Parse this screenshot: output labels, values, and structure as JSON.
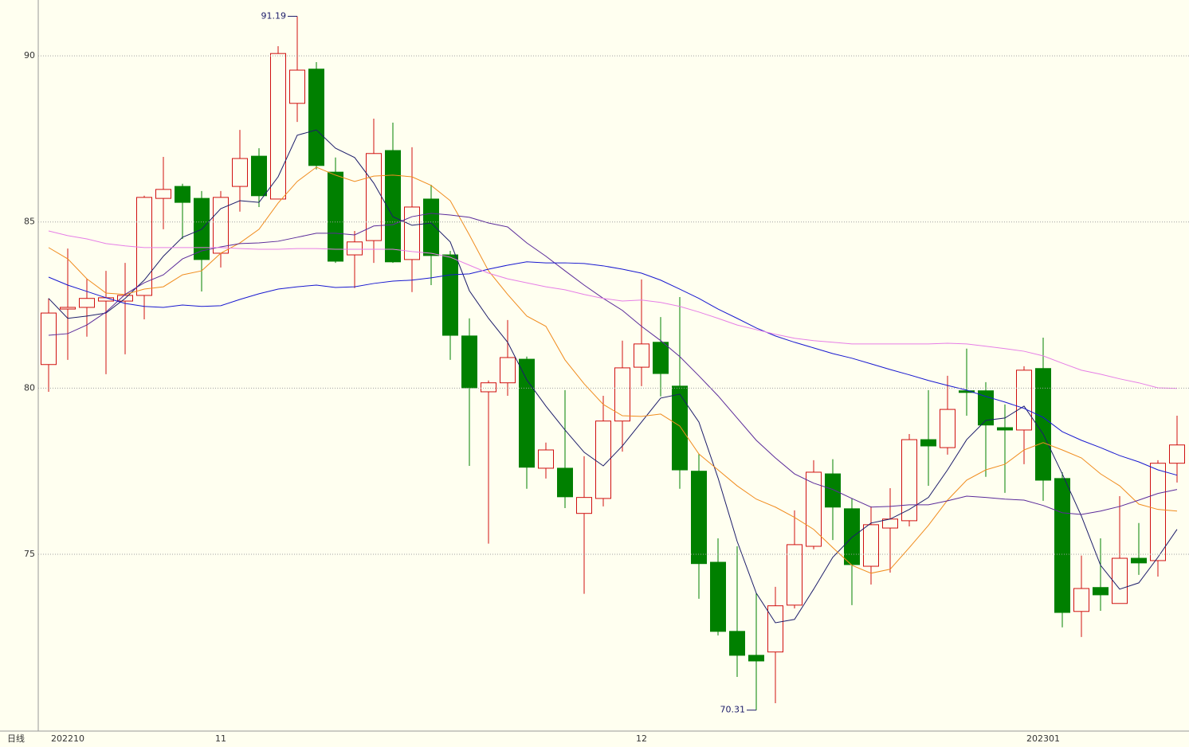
{
  "chart_data": {
    "type": "candlestick",
    "period_label": "日线",
    "categories": [
      null,
      "202210",
      null,
      null,
      null,
      null,
      null,
      null,
      null,
      "11",
      null,
      null,
      null,
      null,
      null,
      null,
      null,
      null,
      null,
      null,
      null,
      null,
      null,
      null,
      null,
      null,
      null,
      null,
      null,
      null,
      null,
      "12",
      null,
      null,
      null,
      null,
      null,
      null,
      null,
      null,
      null,
      null,
      null,
      null,
      null,
      null,
      null,
      null,
      null,
      null,
      null,
      null,
      "202301",
      null,
      null,
      null,
      null,
      null,
      null,
      null
    ],
    "open": [
      80.71,
      82.38,
      82.43,
      82.62,
      82.62,
      82.79,
      85.71,
      86.07,
      85.71,
      84.06,
      86.07,
      86.98,
      85.69,
      88.57,
      89.6,
      86.5,
      84.01,
      84.44,
      87.15,
      83.87,
      85.69,
      84.01,
      81.57,
      79.89,
      80.16,
      80.87,
      77.59,
      77.59,
      76.23,
      76.68,
      79.01,
      80.63,
      81.38,
      80.06,
      77.5,
      74.76,
      72.68,
      71.96,
      72.06,
      73.47,
      75.24,
      77.42,
      76.37,
      74.64,
      75.79,
      76.01,
      78.45,
      78.21,
      79.92,
      79.92,
      78.81,
      78.74,
      80.59,
      77.28,
      73.28,
      74.0,
      73.52,
      74.88,
      74.81,
      77.74
    ],
    "high": [
      82.7,
      84.2,
      83.29,
      83.53,
      83.77,
      85.79,
      86.96,
      86.15,
      85.93,
      85.93,
      87.77,
      87.22,
      90.29,
      91.19,
      89.81,
      86.94,
      84.73,
      88.11,
      87.99,
      87.25,
      86.12,
      84.13,
      82.1,
      80.23,
      82.05,
      80.95,
      78.36,
      79.94,
      77.95,
      79.77,
      81.43,
      83.27,
      82.14,
      82.74,
      78.02,
      75.48,
      75.24,
      73.83,
      74.02,
      76.32,
      77.83,
      77.86,
      76.68,
      76.44,
      76.99,
      78.62,
      79.94,
      80.37,
      81.19,
      80.18,
      79.51,
      80.66,
      81.52,
      77.47,
      74.96,
      75.48,
      76.75,
      75.94,
      77.83,
      79.17
    ],
    "low": [
      79.89,
      80.85,
      81.55,
      80.42,
      81.02,
      82.07,
      84.78,
      84.49,
      82.91,
      83.63,
      85.31,
      85.45,
      85.69,
      88.01,
      86.58,
      83.77,
      83.01,
      83.77,
      83.77,
      82.89,
      83.1,
      80.85,
      77.66,
      75.32,
      79.77,
      76.97,
      77.28,
      76.39,
      73.81,
      76.44,
      78.09,
      80.06,
      79.75,
      76.97,
      73.66,
      72.56,
      71.31,
      70.31,
      70.52,
      73.37,
      75.15,
      75.43,
      73.47,
      74.09,
      74.45,
      75.84,
      77.06,
      78.0,
      79.17,
      77.33,
      76.85,
      77.71,
      76.61,
      72.8,
      72.51,
      73.3,
      73.52,
      74.38,
      74.33,
      77.16
    ],
    "close": [
      82.26,
      82.43,
      82.7,
      82.72,
      82.79,
      85.74,
      85.98,
      85.59,
      83.87,
      85.74,
      86.91,
      85.79,
      90.07,
      89.57,
      86.7,
      83.82,
      84.4,
      87.06,
      83.8,
      85.45,
      83.99,
      81.59,
      80.01,
      80.16,
      80.92,
      77.62,
      78.14,
      76.73,
      76.71,
      79.01,
      80.61,
      81.33,
      80.44,
      77.54,
      74.72,
      72.68,
      71.96,
      71.79,
      73.45,
      75.29,
      77.47,
      76.42,
      74.69,
      75.89,
      76.06,
      78.45,
      78.26,
      79.36,
      79.87,
      78.89,
      78.74,
      80.54,
      77.23,
      73.25,
      73.97,
      73.78,
      74.88,
      74.74,
      77.74,
      78.29
    ],
    "up_color": "#d01010",
    "down_color": "#008000",
    "series": [
      {
        "color": "#1c1c6a",
        "values": [
          82.7,
          82.1,
          82.17,
          82.26,
          82.7,
          83.25,
          83.97,
          84.54,
          84.78,
          85.4,
          85.64,
          85.59,
          86.36,
          87.61,
          87.77,
          87.22,
          86.94,
          86.17,
          85.16,
          84.9,
          84.97,
          84.4,
          82.93,
          82.1,
          81.38,
          80.25,
          79.46,
          78.74,
          78.07,
          77.66,
          78.26,
          78.98,
          79.7,
          79.82,
          78.98,
          77.3,
          75.39,
          73.83,
          72.94,
          73.04,
          73.95,
          74.91,
          75.51,
          75.94,
          76.06,
          76.35,
          76.71,
          77.54,
          78.45,
          79.03,
          79.1,
          79.46,
          78.62,
          77.42,
          76.15,
          74.67,
          73.95,
          74.14,
          74.91,
          75.75
        ]
      },
      {
        "color": "#f08c1e",
        "values": [
          84.23,
          83.89,
          83.29,
          82.86,
          82.82,
          82.98,
          83.05,
          83.41,
          83.53,
          84.06,
          84.37,
          84.78,
          85.57,
          86.22,
          86.65,
          86.41,
          86.22,
          86.38,
          86.41,
          86.36,
          86.1,
          85.64,
          84.61,
          83.53,
          82.82,
          82.17,
          81.86,
          80.85,
          80.13,
          79.51,
          79.17,
          79.15,
          79.22,
          78.86,
          78.02,
          77.54,
          77.06,
          76.66,
          76.42,
          76.11,
          75.75,
          75.2,
          74.67,
          74.43,
          74.55,
          75.2,
          75.87,
          76.63,
          77.23,
          77.54,
          77.71,
          78.14,
          78.36,
          78.14,
          77.9,
          77.42,
          77.06,
          76.51,
          76.35,
          76.3
        ]
      },
      {
        "color": "#5a2a9a",
        "values": [
          81.59,
          81.64,
          81.9,
          82.29,
          82.82,
          83.17,
          83.41,
          83.89,
          84.13,
          84.25,
          84.35,
          84.37,
          84.42,
          84.54,
          84.66,
          84.66,
          84.61,
          84.88,
          84.92,
          85.16,
          85.26,
          85.21,
          85.14,
          84.97,
          84.85,
          84.37,
          83.97,
          83.53,
          83.1,
          82.7,
          82.34,
          81.86,
          81.43,
          80.95,
          80.37,
          79.77,
          79.1,
          78.43,
          77.9,
          77.42,
          77.14,
          76.95,
          76.68,
          76.42,
          76.44,
          76.49,
          76.49,
          76.61,
          76.75,
          76.71,
          76.66,
          76.63,
          76.47,
          76.25,
          76.2,
          76.3,
          76.44,
          76.63,
          76.83,
          76.95
        ]
      },
      {
        "color": "#1818d0",
        "values": [
          83.34,
          83.1,
          82.91,
          82.72,
          82.55,
          82.46,
          82.43,
          82.5,
          82.46,
          82.48,
          82.67,
          82.84,
          82.98,
          83.05,
          83.1,
          83.03,
          83.05,
          83.15,
          83.22,
          83.25,
          83.32,
          83.41,
          83.44,
          83.58,
          83.7,
          83.8,
          83.77,
          83.77,
          83.75,
          83.68,
          83.58,
          83.46,
          83.25,
          82.98,
          82.7,
          82.38,
          82.1,
          81.81,
          81.57,
          81.38,
          81.21,
          81.04,
          80.9,
          80.73,
          80.56,
          80.4,
          80.23,
          80.08,
          79.94,
          79.75,
          79.58,
          79.39,
          79.12,
          78.69,
          78.43,
          78.21,
          77.97,
          77.78,
          77.54,
          77.38
        ]
      },
      {
        "color": "#e67ee6",
        "values": [
          84.73,
          84.59,
          84.49,
          84.35,
          84.28,
          84.23,
          84.23,
          84.23,
          84.23,
          84.23,
          84.2,
          84.18,
          84.18,
          84.2,
          84.2,
          84.18,
          84.18,
          84.18,
          84.18,
          84.11,
          84.06,
          83.94,
          83.7,
          83.46,
          83.29,
          83.17,
          83.05,
          82.96,
          82.82,
          82.7,
          82.62,
          82.65,
          82.58,
          82.46,
          82.29,
          82.1,
          81.9,
          81.76,
          81.62,
          81.5,
          81.43,
          81.38,
          81.33,
          81.33,
          81.33,
          81.33,
          81.33,
          81.35,
          81.33,
          81.26,
          81.19,
          81.11,
          80.97,
          80.75,
          80.54,
          80.42,
          80.28,
          80.16,
          80.01,
          79.99
        ]
      }
    ],
    "ylim": [
      69.68,
      91.68
    ],
    "yticks": [
      75,
      80,
      85,
      90
    ],
    "grid": true
  }
}
